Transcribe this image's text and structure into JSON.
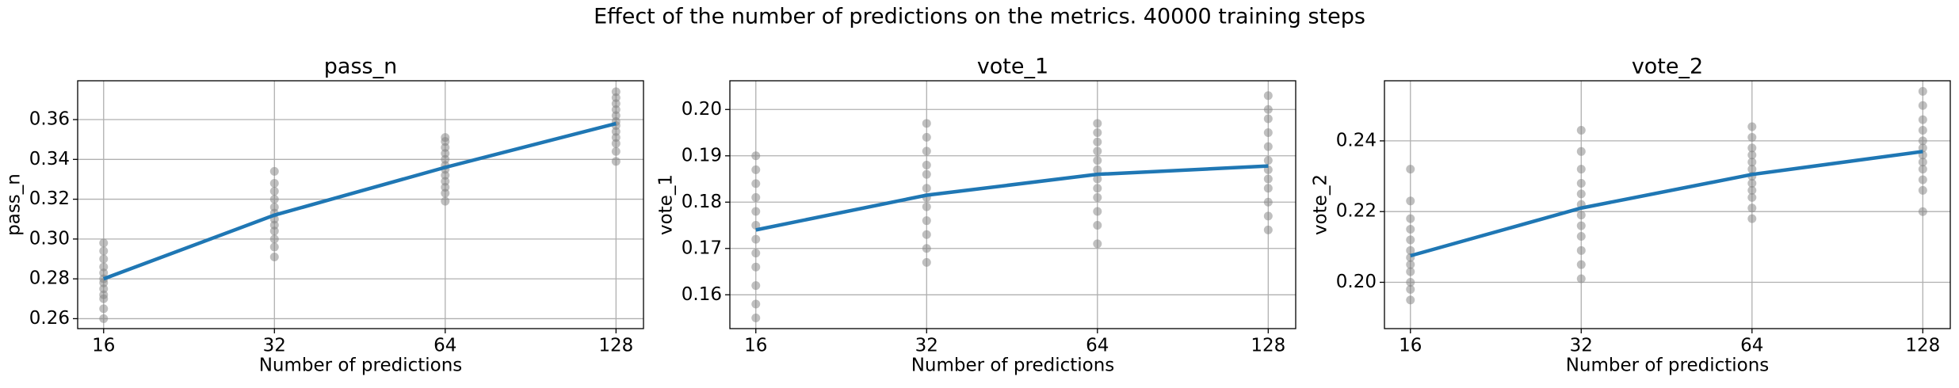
{
  "title": "Effect of the number of predictions on the metrics. 40000 training steps",
  "chart_data": [
    {
      "type": "line",
      "title": "pass_n",
      "xlabel": "Number of predictions",
      "ylabel": "pass_n",
      "xscale": "log2",
      "xlim": [
        14.4,
        143.1
      ],
      "ylim": [
        0.255,
        0.3795
      ],
      "xticks": [
        16,
        32,
        64,
        128
      ],
      "yticks": [
        0.26,
        0.28,
        {
          "value": 0.3,
          "label": "0.30"
        },
        0.32,
        0.34,
        0.36
      ],
      "grid": true,
      "x": [
        16,
        32,
        64,
        128
      ],
      "line": {
        "color": "#1f77b4",
        "values": [
          0.28,
          0.312,
          0.336,
          0.358
        ]
      },
      "scatter": {
        "color": "#808080",
        "x": [
          16,
          16,
          16,
          16,
          16,
          16,
          16,
          16,
          16,
          16,
          16,
          16,
          32,
          32,
          32,
          32,
          32,
          32,
          32,
          32,
          32,
          32,
          32,
          32,
          64,
          64,
          64,
          64,
          64,
          64,
          64,
          64,
          64,
          64,
          64,
          64,
          128,
          128,
          128,
          128,
          128,
          128,
          128,
          128,
          128,
          128,
          128,
          128
        ],
        "y": [
          0.26,
          0.265,
          0.27,
          0.272,
          0.275,
          0.278,
          0.28,
          0.283,
          0.286,
          0.29,
          0.294,
          0.298,
          0.291,
          0.296,
          0.3,
          0.304,
          0.307,
          0.31,
          0.313,
          0.316,
          0.32,
          0.324,
          0.328,
          0.334,
          0.319,
          0.323,
          0.326,
          0.329,
          0.332,
          0.335,
          0.337,
          0.34,
          0.343,
          0.346,
          0.349,
          0.351,
          0.339,
          0.344,
          0.348,
          0.351,
          0.354,
          0.357,
          0.359,
          0.362,
          0.365,
          0.368,
          0.371,
          0.374
        ]
      }
    },
    {
      "type": "line",
      "title": "vote_1",
      "xlabel": "Number of predictions",
      "ylabel": "vote_1",
      "xscale": "log2",
      "xlim": [
        14.4,
        143.1
      ],
      "ylim": [
        0.1527,
        0.2062
      ],
      "xticks": [
        16,
        32,
        64,
        128
      ],
      "yticks": [
        0.16,
        0.17,
        0.18,
        0.19,
        {
          "value": 0.2,
          "label": "0.20"
        }
      ],
      "grid": true,
      "x": [
        16,
        32,
        64,
        128
      ],
      "line": {
        "color": "#1f77b4",
        "values": [
          0.174,
          0.1815,
          0.186,
          0.1878
        ]
      },
      "scatter": {
        "color": "#808080",
        "x": [
          16,
          16,
          16,
          16,
          16,
          16,
          16,
          16,
          16,
          16,
          16,
          16,
          32,
          32,
          32,
          32,
          32,
          32,
          32,
          32,
          32,
          32,
          32,
          32,
          64,
          64,
          64,
          64,
          64,
          64,
          64,
          64,
          64,
          64,
          64,
          64,
          128,
          128,
          128,
          128,
          128,
          128,
          128,
          128,
          128,
          128,
          128,
          128
        ],
        "y": [
          0.155,
          0.158,
          0.162,
          0.166,
          0.169,
          0.172,
          0.175,
          0.178,
          0.181,
          0.184,
          0.187,
          0.19,
          0.167,
          0.17,
          0.173,
          0.176,
          0.179,
          0.181,
          0.183,
          0.186,
          0.188,
          0.191,
          0.194,
          0.197,
          0.171,
          0.175,
          0.178,
          0.181,
          0.183,
          0.185,
          0.187,
          0.189,
          0.191,
          0.193,
          0.195,
          0.197,
          0.174,
          0.177,
          0.18,
          0.183,
          0.185,
          0.187,
          0.189,
          0.192,
          0.195,
          0.198,
          0.2,
          0.203
        ]
      }
    },
    {
      "type": "line",
      "title": "vote_2",
      "xlabel": "Number of predictions",
      "ylabel": "vote_2",
      "xscale": "log2",
      "xlim": [
        14.4,
        143.1
      ],
      "ylim": [
        0.1869,
        0.257
      ],
      "xticks": [
        16,
        32,
        64,
        128
      ],
      "yticks": [
        {
          "value": 0.2,
          "label": "0.20"
        },
        0.22,
        0.24
      ],
      "grid": true,
      "x": [
        16,
        32,
        64,
        128
      ],
      "line": {
        "color": "#1f77b4",
        "values": [
          0.2075,
          0.221,
          0.2305,
          0.237
        ]
      },
      "scatter": {
        "color": "#808080",
        "x": [
          16,
          16,
          16,
          16,
          16,
          16,
          16,
          16,
          16,
          16,
          16,
          16,
          32,
          32,
          32,
          32,
          32,
          32,
          32,
          32,
          32,
          32,
          32,
          32,
          64,
          64,
          64,
          64,
          64,
          64,
          64,
          64,
          64,
          64,
          64,
          64,
          128,
          128,
          128,
          128,
          128,
          128,
          128,
          128,
          128,
          128,
          128,
          128
        ],
        "y": [
          0.195,
          0.198,
          0.2,
          0.203,
          0.205,
          0.207,
          0.209,
          0.212,
          0.215,
          0.218,
          0.223,
          0.232,
          0.201,
          0.205,
          0.209,
          0.213,
          0.216,
          0.219,
          0.222,
          0.225,
          0.228,
          0.232,
          0.237,
          0.243,
          0.218,
          0.221,
          0.224,
          0.226,
          0.228,
          0.23,
          0.232,
          0.234,
          0.236,
          0.238,
          0.241,
          0.244,
          0.22,
          0.226,
          0.229,
          0.232,
          0.234,
          0.236,
          0.238,
          0.24,
          0.243,
          0.246,
          0.25,
          0.254
        ]
      }
    }
  ]
}
